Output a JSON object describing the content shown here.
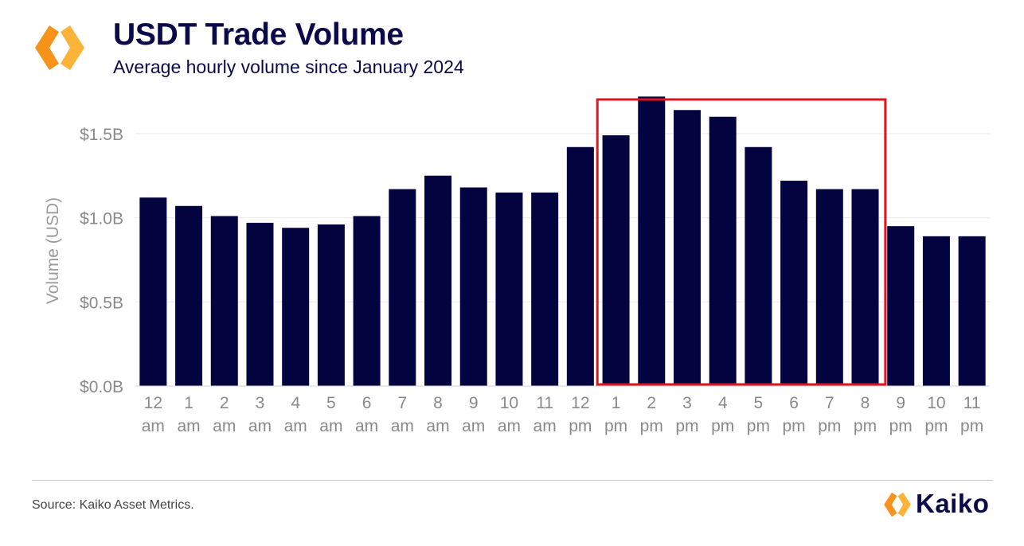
{
  "header": {
    "title": "USDT Trade Volume",
    "subtitle": "Average hourly volume since January 2024"
  },
  "footer": {
    "source": "Source: Kaiko Asset Metrics.",
    "brand": "Kaiko"
  },
  "colors": {
    "bar": "#03033f",
    "highlight_box": "#e0141e",
    "logo_orange": "#f7931a",
    "logo_yellow": "#fbb33a",
    "axis_text": "#8a8a8a",
    "title": "#0a0a4a"
  },
  "chart_data": {
    "type": "bar",
    "title": "USDT Trade Volume",
    "subtitle": "Average hourly volume since January 2024",
    "ylabel": "Volume (USD)",
    "xlabel": "",
    "ylim": [
      0,
      1.75
    ],
    "yticks": [
      0.0,
      0.5,
      1.0,
      1.5
    ],
    "ytick_labels": [
      "$0.0B",
      "$0.5B",
      "$1.0B",
      "$1.5B"
    ],
    "grid": true,
    "categories": [
      [
        "12",
        "am"
      ],
      [
        "1",
        "am"
      ],
      [
        "2",
        "am"
      ],
      [
        "3",
        "am"
      ],
      [
        "4",
        "am"
      ],
      [
        "5",
        "am"
      ],
      [
        "6",
        "am"
      ],
      [
        "7",
        "am"
      ],
      [
        "8",
        "am"
      ],
      [
        "9",
        "am"
      ],
      [
        "10",
        "am"
      ],
      [
        "11",
        "am"
      ],
      [
        "12",
        "pm"
      ],
      [
        "1",
        "pm"
      ],
      [
        "2",
        "pm"
      ],
      [
        "3",
        "pm"
      ],
      [
        "4",
        "pm"
      ],
      [
        "5",
        "pm"
      ],
      [
        "6",
        "pm"
      ],
      [
        "7",
        "pm"
      ],
      [
        "8",
        "pm"
      ],
      [
        "9",
        "pm"
      ],
      [
        "10",
        "pm"
      ],
      [
        "11",
        "pm"
      ]
    ],
    "values": [
      1.12,
      1.07,
      1.01,
      0.97,
      0.94,
      0.96,
      1.01,
      1.17,
      1.25,
      1.18,
      1.15,
      1.15,
      1.42,
      1.49,
      1.72,
      1.64,
      1.6,
      1.42,
      1.22,
      1.17,
      1.17,
      0.95,
      0.89,
      0.89
    ],
    "highlight": {
      "from_index": 13,
      "to_index": 20
    }
  }
}
